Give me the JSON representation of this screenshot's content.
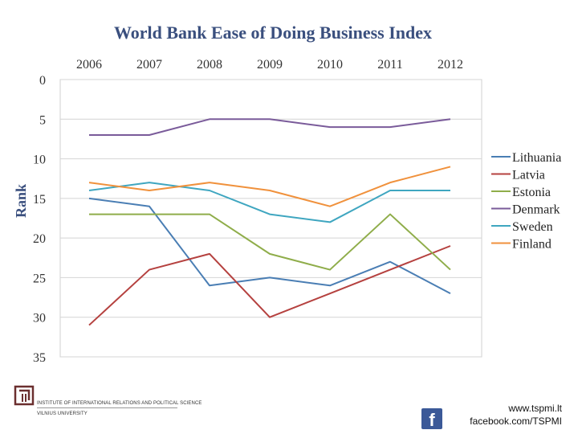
{
  "chart_data": {
    "type": "line",
    "title": "World Bank Ease of Doing Business Index",
    "xlabel": "",
    "ylabel": "Rank",
    "x": [
      "2006",
      "2007",
      "2008",
      "2009",
      "2010",
      "2011",
      "2012"
    ],
    "yticks": [
      "0",
      "5",
      "10",
      "15",
      "20",
      "25",
      "30",
      "35"
    ],
    "ylim": [
      0,
      35
    ],
    "y_inverted": true,
    "x_axis_position": "top",
    "grid": true,
    "legend_position": "right",
    "series": [
      {
        "name": "Lithuania",
        "color": "#4a7eb4",
        "values": [
          15,
          16,
          26,
          25,
          26,
          23,
          27
        ]
      },
      {
        "name": "Latvia",
        "color": "#b5413f",
        "values": [
          31,
          24,
          22,
          30,
          27,
          24,
          21
        ]
      },
      {
        "name": "Estonia",
        "color": "#8fad4a",
        "values": [
          17,
          17,
          17,
          22,
          24,
          17,
          24
        ]
      },
      {
        "name": "Denmark",
        "color": "#7a5b9a",
        "values": [
          7,
          7,
          5,
          5,
          6,
          6,
          5
        ]
      },
      {
        "name": "Sweden",
        "color": "#3fa6c0",
        "values": [
          14,
          13,
          14,
          17,
          18,
          14,
          14
        ]
      },
      {
        "name": "Finland",
        "color": "#f0913c",
        "values": [
          13,
          14,
          13,
          14,
          16,
          13,
          11
        ]
      }
    ]
  },
  "footer": {
    "institution_line1": "INSTITUTE OF INTERNATIONAL RELATIONS AND POLITICAL SCIENCE",
    "institution_line2": "VILNIUS UNIVERSITY",
    "facebook_icon_glyph": "f",
    "website": "www.tspmi.lt",
    "facebook": "facebook.com/TSPMI"
  }
}
